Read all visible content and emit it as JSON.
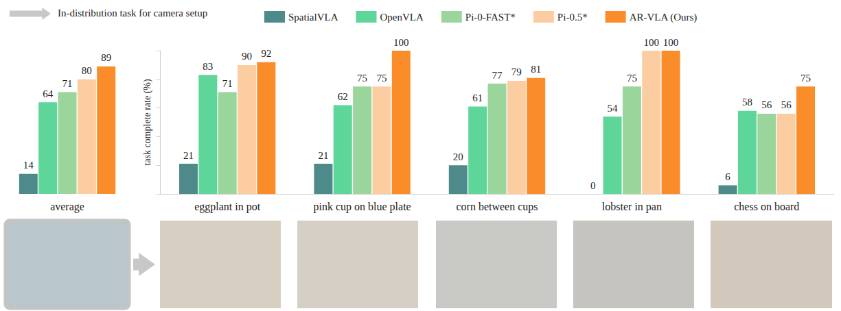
{
  "legend_note": "In-distribution task for camera setup",
  "chart_data": [
    {
      "type": "bar",
      "categories": [
        "average"
      ],
      "series": [
        {
          "name": "SpatialVLA",
          "color": "#4f8a8b",
          "values": [
            14
          ]
        },
        {
          "name": "OpenVLA",
          "color": "#5ed69a",
          "values": [
            64
          ]
        },
        {
          "name": "Pi-0-FAST*",
          "color": "#9ad69c",
          "values": [
            71
          ]
        },
        {
          "name": "Pi-0.5*",
          "color": "#fdcda2",
          "values": [
            80
          ]
        },
        {
          "name": "AR-VLA (Ours)",
          "color": "#fb8c2a",
          "values": [
            89
          ]
        }
      ],
      "ylim": [
        0,
        100
      ],
      "data_labels": true,
      "tick_labels": "x"
    },
    {
      "type": "bar",
      "y_label": "task complete rate (%)",
      "categories": [
        "eggplant in pot",
        "pink cup on blue plate",
        "corn between cups",
        "lobster in pan",
        "chess on board"
      ],
      "series": [
        {
          "name": "SpatialVLA",
          "color": "#4f8a8b",
          "values": [
            21,
            21,
            20,
            0,
            6
          ]
        },
        {
          "name": "OpenVLA",
          "color": "#5ed69a",
          "values": [
            83,
            62,
            61,
            54,
            58
          ]
        },
        {
          "name": "Pi-0-FAST*",
          "color": "#9ad69c",
          "values": [
            71,
            75,
            77,
            75,
            56
          ]
        },
        {
          "name": "Pi-0.5*",
          "color": "#fdcda2",
          "values": [
            90,
            75,
            79,
            100,
            56
          ]
        },
        {
          "name": "AR-VLA (Ours)",
          "color": "#fb8c2a",
          "values": [
            92,
            100,
            81,
            100,
            75
          ]
        }
      ],
      "ylim": [
        0,
        100
      ],
      "yticks": [
        0,
        20,
        40,
        60,
        80,
        100
      ],
      "data_labels": true,
      "tick_labels": "x",
      "legend": "top"
    }
  ]
}
